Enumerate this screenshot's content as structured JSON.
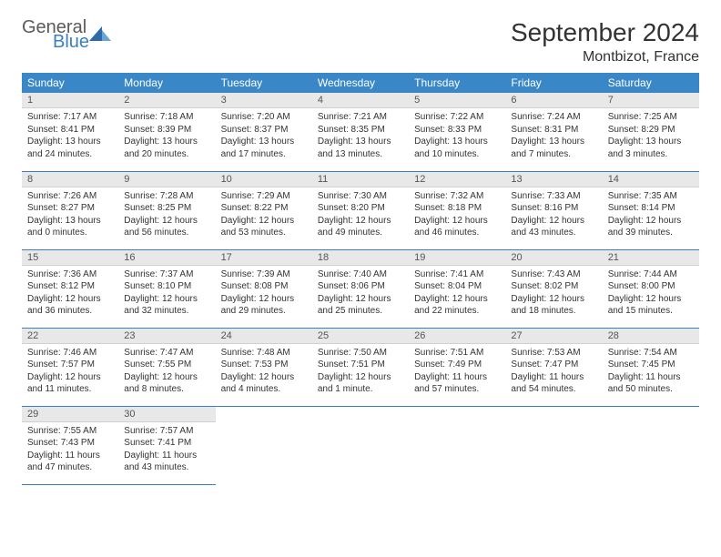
{
  "logo": {
    "general": "General",
    "blue": "Blue"
  },
  "title": "September 2024",
  "location": "Montbizot, France",
  "colors": {
    "header_bg": "#3a87c8",
    "header_text": "#ffffff",
    "daynum_bg": "#e8e8e8",
    "border": "#3a7fc4",
    "text": "#333333"
  },
  "weekdays": [
    "Sunday",
    "Monday",
    "Tuesday",
    "Wednesday",
    "Thursday",
    "Friday",
    "Saturday"
  ],
  "days": [
    {
      "n": "1",
      "sr": "7:17 AM",
      "ss": "8:41 PM",
      "dl": "13 hours and 24 minutes."
    },
    {
      "n": "2",
      "sr": "7:18 AM",
      "ss": "8:39 PM",
      "dl": "13 hours and 20 minutes."
    },
    {
      "n": "3",
      "sr": "7:20 AM",
      "ss": "8:37 PM",
      "dl": "13 hours and 17 minutes."
    },
    {
      "n": "4",
      "sr": "7:21 AM",
      "ss": "8:35 PM",
      "dl": "13 hours and 13 minutes."
    },
    {
      "n": "5",
      "sr": "7:22 AM",
      "ss": "8:33 PM",
      "dl": "13 hours and 10 minutes."
    },
    {
      "n": "6",
      "sr": "7:24 AM",
      "ss": "8:31 PM",
      "dl": "13 hours and 7 minutes."
    },
    {
      "n": "7",
      "sr": "7:25 AM",
      "ss": "8:29 PM",
      "dl": "13 hours and 3 minutes."
    },
    {
      "n": "8",
      "sr": "7:26 AM",
      "ss": "8:27 PM",
      "dl": "13 hours and 0 minutes."
    },
    {
      "n": "9",
      "sr": "7:28 AM",
      "ss": "8:25 PM",
      "dl": "12 hours and 56 minutes."
    },
    {
      "n": "10",
      "sr": "7:29 AM",
      "ss": "8:22 PM",
      "dl": "12 hours and 53 minutes."
    },
    {
      "n": "11",
      "sr": "7:30 AM",
      "ss": "8:20 PM",
      "dl": "12 hours and 49 minutes."
    },
    {
      "n": "12",
      "sr": "7:32 AM",
      "ss": "8:18 PM",
      "dl": "12 hours and 46 minutes."
    },
    {
      "n": "13",
      "sr": "7:33 AM",
      "ss": "8:16 PM",
      "dl": "12 hours and 43 minutes."
    },
    {
      "n": "14",
      "sr": "7:35 AM",
      "ss": "8:14 PM",
      "dl": "12 hours and 39 minutes."
    },
    {
      "n": "15",
      "sr": "7:36 AM",
      "ss": "8:12 PM",
      "dl": "12 hours and 36 minutes."
    },
    {
      "n": "16",
      "sr": "7:37 AM",
      "ss": "8:10 PM",
      "dl": "12 hours and 32 minutes."
    },
    {
      "n": "17",
      "sr": "7:39 AM",
      "ss": "8:08 PM",
      "dl": "12 hours and 29 minutes."
    },
    {
      "n": "18",
      "sr": "7:40 AM",
      "ss": "8:06 PM",
      "dl": "12 hours and 25 minutes."
    },
    {
      "n": "19",
      "sr": "7:41 AM",
      "ss": "8:04 PM",
      "dl": "12 hours and 22 minutes."
    },
    {
      "n": "20",
      "sr": "7:43 AM",
      "ss": "8:02 PM",
      "dl": "12 hours and 18 minutes."
    },
    {
      "n": "21",
      "sr": "7:44 AM",
      "ss": "8:00 PM",
      "dl": "12 hours and 15 minutes."
    },
    {
      "n": "22",
      "sr": "7:46 AM",
      "ss": "7:57 PM",
      "dl": "12 hours and 11 minutes."
    },
    {
      "n": "23",
      "sr": "7:47 AM",
      "ss": "7:55 PM",
      "dl": "12 hours and 8 minutes."
    },
    {
      "n": "24",
      "sr": "7:48 AM",
      "ss": "7:53 PM",
      "dl": "12 hours and 4 minutes."
    },
    {
      "n": "25",
      "sr": "7:50 AM",
      "ss": "7:51 PM",
      "dl": "12 hours and 1 minute."
    },
    {
      "n": "26",
      "sr": "7:51 AM",
      "ss": "7:49 PM",
      "dl": "11 hours and 57 minutes."
    },
    {
      "n": "27",
      "sr": "7:53 AM",
      "ss": "7:47 PM",
      "dl": "11 hours and 54 minutes."
    },
    {
      "n": "28",
      "sr": "7:54 AM",
      "ss": "7:45 PM",
      "dl": "11 hours and 50 minutes."
    },
    {
      "n": "29",
      "sr": "7:55 AM",
      "ss": "7:43 PM",
      "dl": "11 hours and 47 minutes."
    },
    {
      "n": "30",
      "sr": "7:57 AM",
      "ss": "7:41 PM",
      "dl": "11 hours and 43 minutes."
    }
  ],
  "labels": {
    "sunrise": "Sunrise:",
    "sunset": "Sunset:",
    "daylight": "Daylight:"
  }
}
